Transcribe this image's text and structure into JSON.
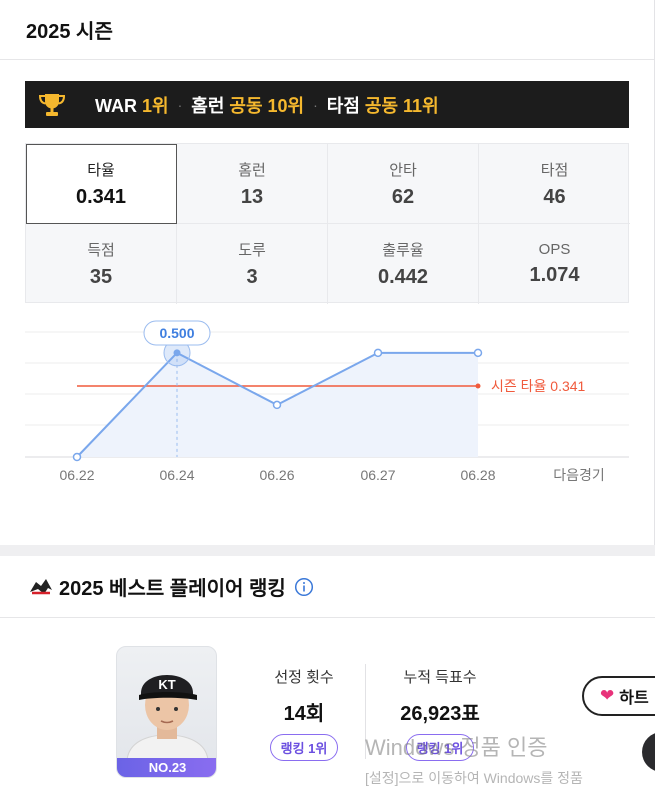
{
  "season": {
    "title": "2025 시즌",
    "ranks": [
      {
        "label": "WAR",
        "value": "1위"
      },
      {
        "label": "홈런",
        "value": "공동 10위"
      },
      {
        "label": "타점",
        "value": "공동 11위"
      }
    ],
    "stats": [
      {
        "label": "타율",
        "value": "0.341"
      },
      {
        "label": "홈런",
        "value": "13"
      },
      {
        "label": "안타",
        "value": "62"
      },
      {
        "label": "타점",
        "value": "46"
      },
      {
        "label": "득점",
        "value": "35"
      },
      {
        "label": "도루",
        "value": "3"
      },
      {
        "label": "출루율",
        "value": "0.442"
      },
      {
        "label": "OPS",
        "value": "1.074"
      }
    ]
  },
  "chart_data": {
    "type": "line",
    "x": [
      "06.22",
      "06.24",
      "06.26",
      "06.27",
      "06.28"
    ],
    "next_label": "다음경기",
    "series": [
      {
        "values": [
          0.0,
          0.5,
          0.25,
          0.5,
          0.5
        ]
      }
    ],
    "reference": {
      "label": "시즌 타율 0.341",
      "value": 0.341
    },
    "highlight": {
      "index": 1,
      "label": "0.500"
    },
    "ylim": [
      0,
      0.6
    ],
    "colors": {
      "line": "#7aa7ec",
      "fill": "#eef3fc",
      "reference": "#f05a3c",
      "tooltip": "#3f7fe0"
    }
  },
  "ranking": {
    "title": "2025 베스트 플레이어 랭킹",
    "player_no": "NO.23",
    "selection_label": "선정 횟수",
    "selection_value": "14회",
    "selection_rank": "랭킹 1위",
    "votes_label": "누적 득표수",
    "votes_value": "26,923표",
    "votes_rank": "랭킹 1위",
    "heart_label": "하트"
  },
  "watermark": {
    "line1": "Windows 정품 인증",
    "line2": "[설정]으로 이동하여 Windows를 정품"
  }
}
